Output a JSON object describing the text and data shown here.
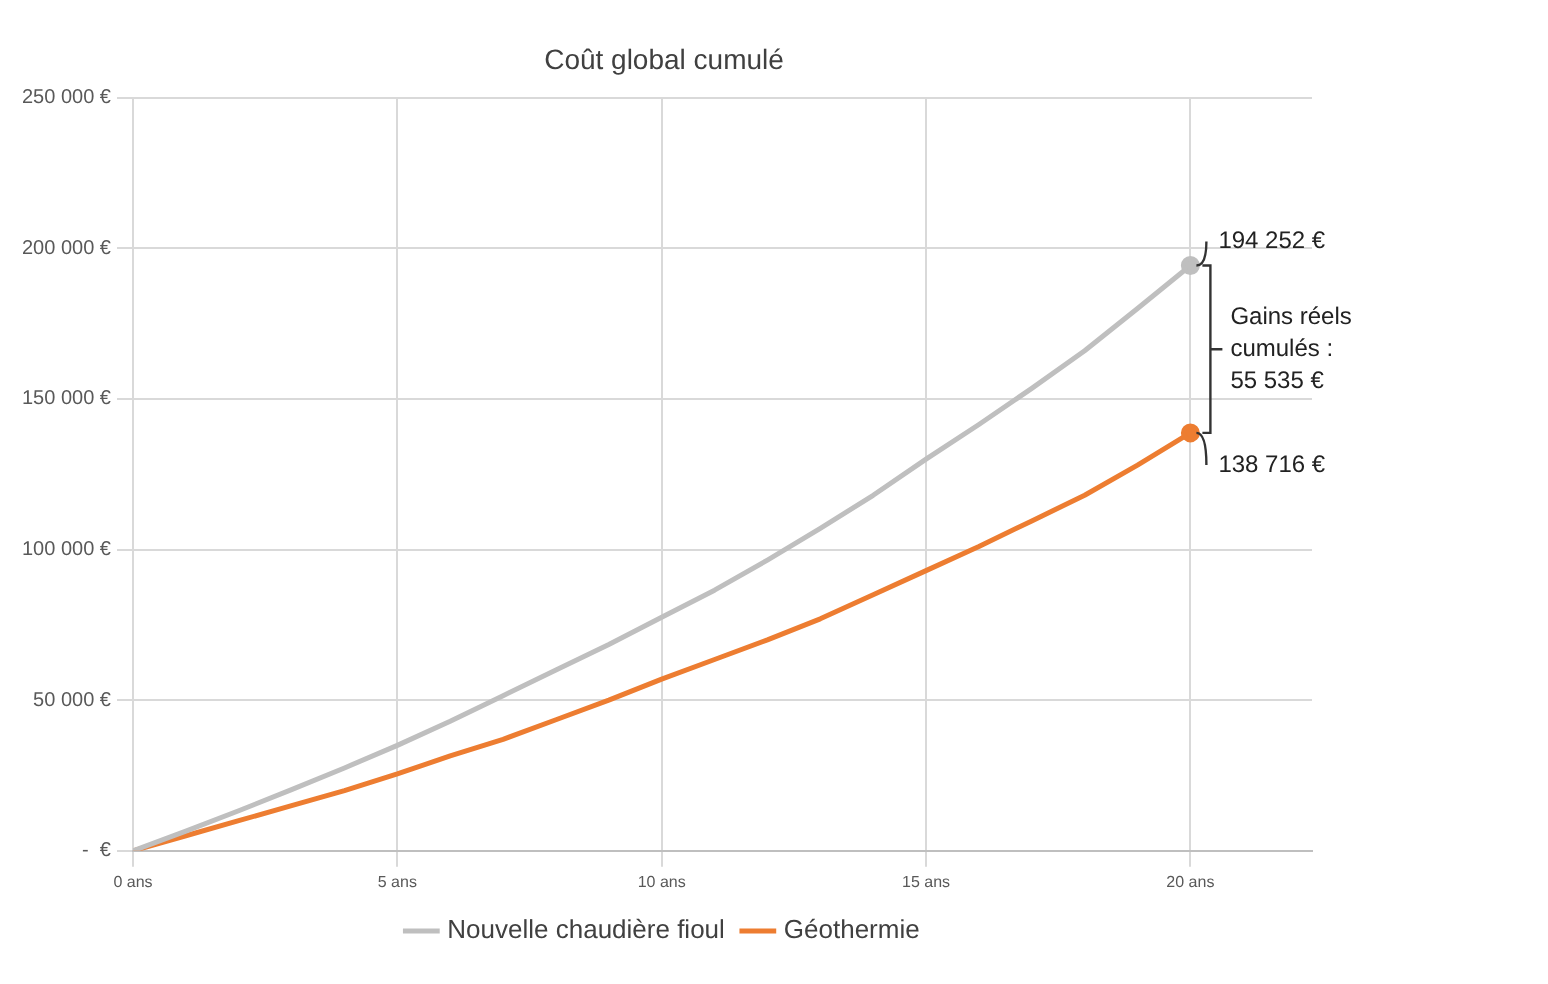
{
  "chart_data": {
    "type": "line",
    "title": "Coût global cumulé",
    "x": [
      0,
      1,
      2,
      3,
      4,
      5,
      6,
      7,
      8,
      9,
      10,
      11,
      12,
      13,
      14,
      15,
      16,
      17,
      18,
      19,
      20
    ],
    "series": [
      {
        "name": "Nouvelle chaudière fioul",
        "color": "#bfbfbf",
        "values": [
          0,
          6500,
          13300,
          20300,
          27500,
          35000,
          43000,
          51500,
          60000,
          68500,
          77500,
          86500,
          96500,
          107000,
          118000,
          130000,
          141500,
          153500,
          166000,
          180000,
          194252
        ]
      },
      {
        "name": "Géothermie",
        "color": "#ed7d31",
        "values": [
          0,
          5000,
          10000,
          15000,
          20000,
          25500,
          31500,
          37000,
          43500,
          50000,
          57000,
          63500,
          70000,
          77000,
          85000,
          93000,
          101000,
          109500,
          118000,
          128000,
          138716
        ]
      }
    ],
    "xlim": [
      0,
      22.3
    ],
    "xticks": [
      {
        "value": 0,
        "label": "0 ans"
      },
      {
        "value": 5,
        "label": "5 ans"
      },
      {
        "value": 10,
        "label": "10 ans"
      },
      {
        "value": 15,
        "label": "15 ans"
      },
      {
        "value": 20,
        "label": "20 ans"
      }
    ],
    "ylim": [
      0,
      250000
    ],
    "yticks": [
      {
        "value": 0,
        "label": "-  €"
      },
      {
        "value": 50000,
        "label": "50 000 €"
      },
      {
        "value": 100000,
        "label": "100 000 €"
      },
      {
        "value": 150000,
        "label": "150 000 €"
      },
      {
        "value": 200000,
        "label": "200 000 €"
      },
      {
        "value": 250000,
        "label": "250 000 €"
      }
    ],
    "grid": true,
    "legend": "bottom",
    "annotations": [
      {
        "text": "194 252 €",
        "x": 20,
        "y": 194252
      },
      {
        "text": "138 716 €",
        "x": 20,
        "y": 138716
      },
      "Gains réels cumulés : 55 535 €"
    ]
  }
}
